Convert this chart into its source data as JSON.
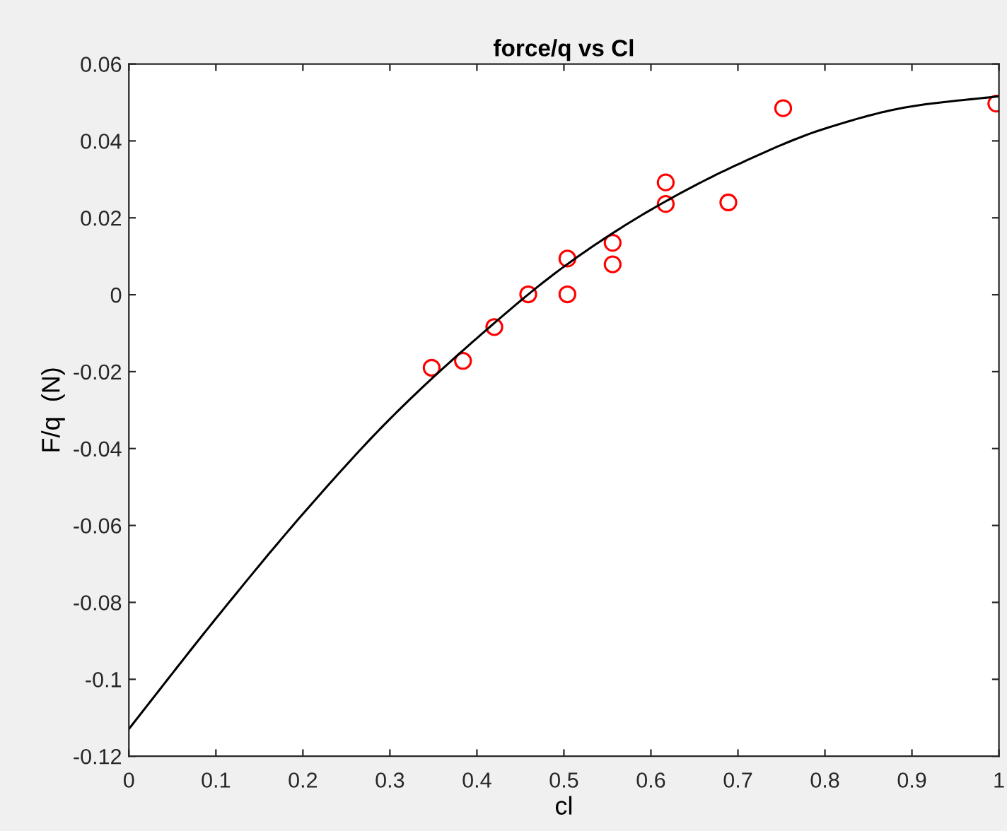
{
  "chart_data": {
    "type": "scatter",
    "title": "force/q vs Cl",
    "xlabel": "cl",
    "ylabel": "F/q  (N)",
    "xlim": [
      0,
      1
    ],
    "ylim": [
      -0.12,
      0.06
    ],
    "xticks": [
      0,
      0.1,
      0.2,
      0.3,
      0.4,
      0.5,
      0.6,
      0.7,
      0.8,
      0.9,
      1
    ],
    "yticks": [
      -0.12,
      -0.1,
      -0.08,
      -0.06,
      -0.04,
      -0.02,
      0,
      0.02,
      0.04,
      0.06
    ],
    "grid": false,
    "series": [
      {
        "color": "#ff0000",
        "marker": "circle",
        "x": [
          0.348,
          0.384,
          0.42,
          0.459,
          0.504,
          0.504,
          0.556,
          0.556,
          0.617,
          0.617,
          0.689,
          0.752,
          0.997
        ],
        "values": [
          -0.019,
          -0.0172,
          -0.0084,
          0.0001,
          0.0094,
          0.0001,
          0.0135,
          0.0079,
          0.0292,
          0.0236,
          0.024,
          0.0485,
          0.0497
        ]
      },
      {
        "type": "line",
        "color": "#000000",
        "marker": "none",
        "line_style": "solid",
        "x": [
          0,
          0.1,
          0.2,
          0.3,
          0.4,
          0.5,
          0.6,
          0.7,
          0.8,
          0.9,
          1
        ],
        "values": [
          -0.1129,
          -0.0842,
          -0.057,
          -0.0323,
          -0.0113,
          0.0073,
          0.0221,
          0.0339,
          0.0432,
          0.049,
          0.0516
        ]
      }
    ]
  }
}
